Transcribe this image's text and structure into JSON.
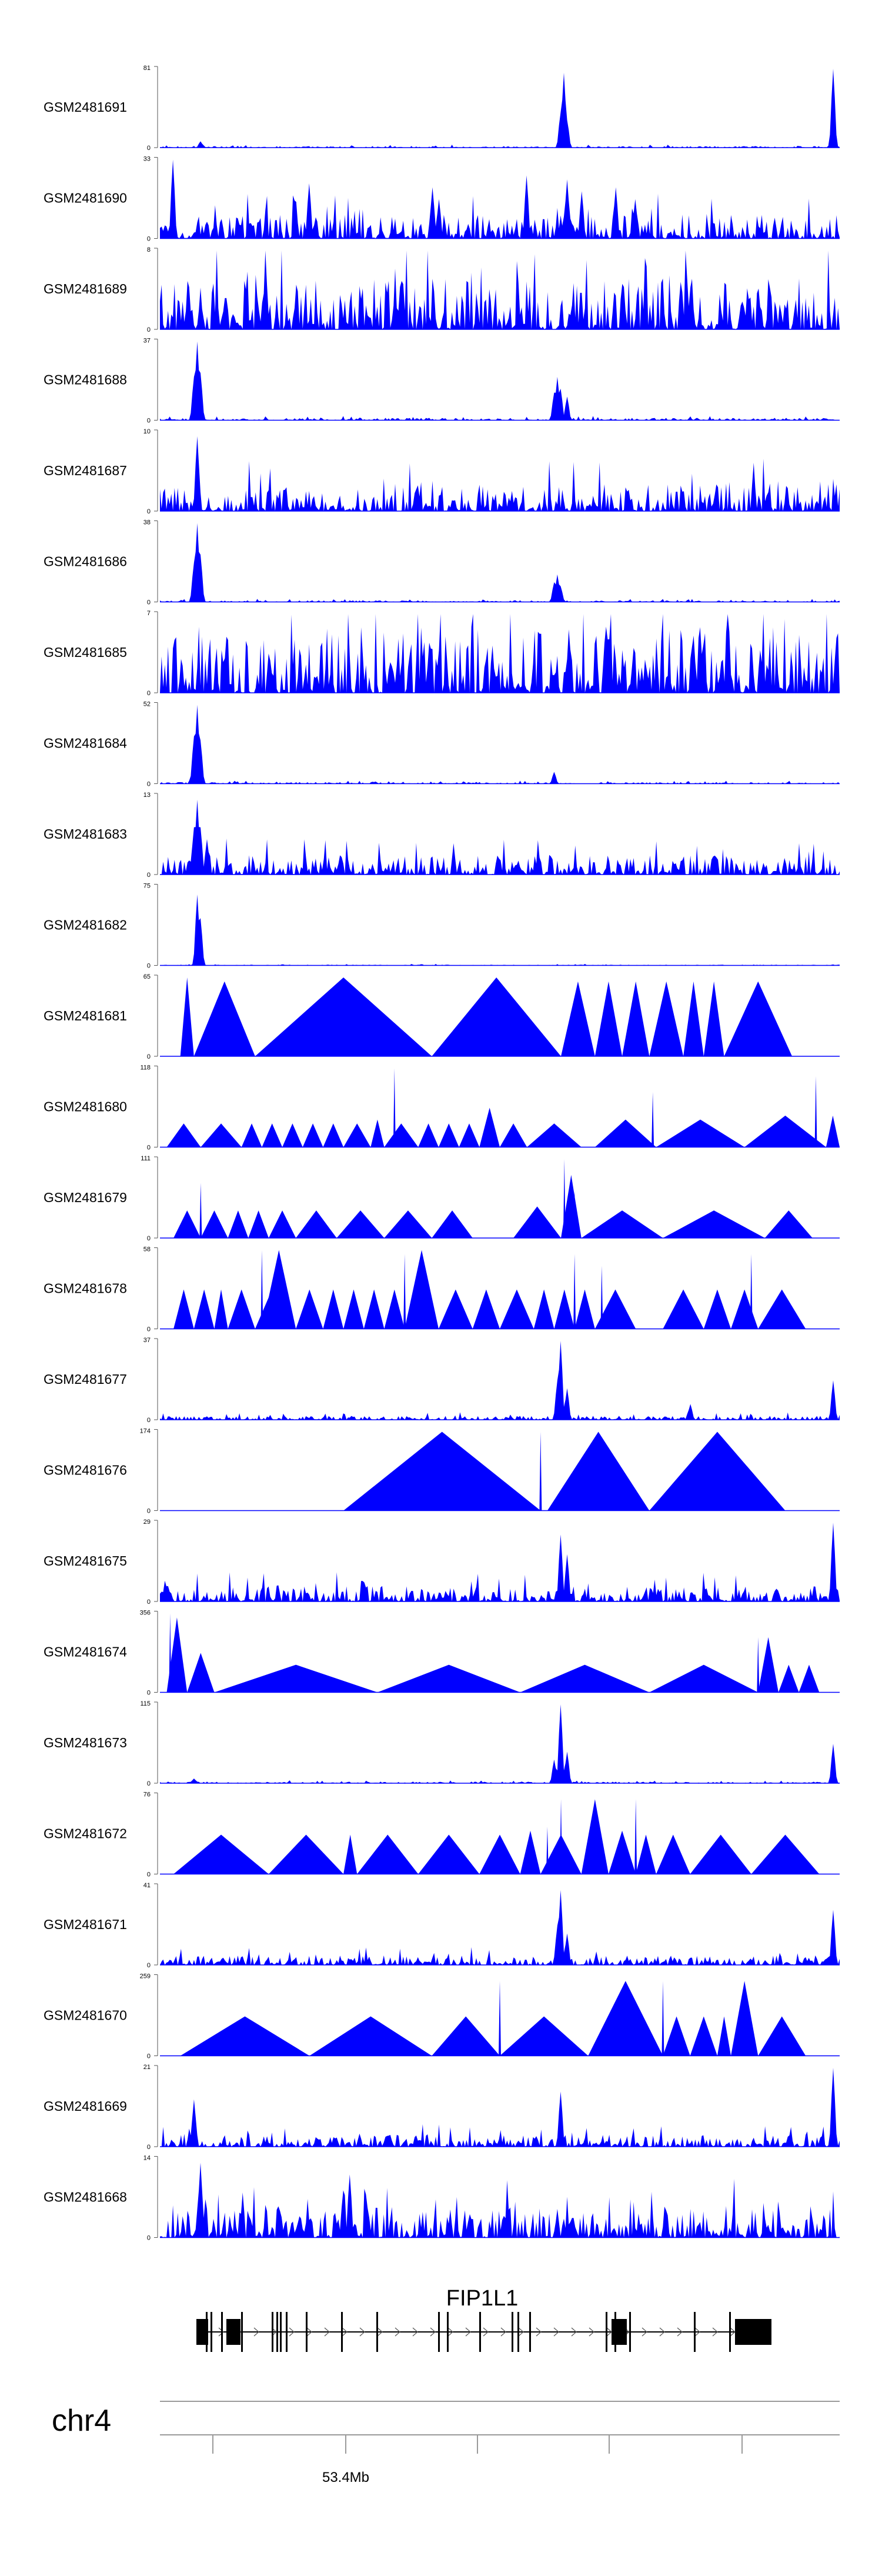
{
  "chart_data": {
    "type": "area",
    "color": "#0000ff",
    "chromosome": "chr4",
    "axis": {
      "tick_labels": [
        "53.4Mb"
      ]
    },
    "gene": {
      "name": "FIP1L1"
    },
    "tracks": [
      {
        "name": "GSM2481691",
        "max": 81,
        "pattern": "peaks",
        "peaks": [
          [
            0.06,
            0.08
          ],
          [
            0.59,
            0.45
          ],
          [
            0.595,
            0.95
          ],
          [
            0.6,
            0.35
          ],
          [
            0.99,
            1.0
          ]
        ],
        "noise": 0.02
      },
      {
        "name": "GSM2481690",
        "max": 33,
        "pattern": "mixed",
        "peaks": [
          [
            0.02,
            1.0
          ],
          [
            0.22,
            0.7
          ],
          [
            0.4,
            0.65
          ],
          [
            0.41,
            0.5
          ],
          [
            0.54,
            0.8
          ],
          [
            0.6,
            0.75
          ],
          [
            0.62,
            0.6
          ],
          [
            0.67,
            0.65
          ],
          [
            0.7,
            0.5
          ]
        ],
        "noise": 0.3
      },
      {
        "name": "GSM2481689",
        "max": 8,
        "pattern": "dense",
        "noise": 0.65
      },
      {
        "name": "GSM2481688",
        "max": 37,
        "pattern": "peaks",
        "peaks": [
          [
            0.05,
            0.55
          ],
          [
            0.055,
            1.0
          ],
          [
            0.06,
            0.6
          ],
          [
            0.58,
            0.35
          ],
          [
            0.585,
            0.55
          ],
          [
            0.59,
            0.4
          ],
          [
            0.6,
            0.3
          ]
        ],
        "noise": 0.03
      },
      {
        "name": "GSM2481687",
        "max": 10,
        "pattern": "dense",
        "noise": 0.35,
        "peaks": [
          [
            0.055,
            0.95
          ]
        ]
      },
      {
        "name": "GSM2481686",
        "max": 38,
        "pattern": "peaks",
        "peaks": [
          [
            0.05,
            0.5
          ],
          [
            0.055,
            1.0
          ],
          [
            0.06,
            0.6
          ],
          [
            0.58,
            0.25
          ],
          [
            0.585,
            0.35
          ],
          [
            0.59,
            0.2
          ]
        ],
        "noise": 0.02
      },
      {
        "name": "GSM2481685",
        "max": 7,
        "pattern": "dense",
        "noise": 0.85
      },
      {
        "name": "GSM2481684",
        "max": 52,
        "pattern": "peaks",
        "peaks": [
          [
            0.05,
            0.6
          ],
          [
            0.055,
            1.0
          ],
          [
            0.06,
            0.55
          ],
          [
            0.58,
            0.15
          ]
        ],
        "noise": 0.02
      },
      {
        "name": "GSM2481683",
        "max": 13,
        "pattern": "dense",
        "noise": 0.25,
        "peaks": [
          [
            0.05,
            0.6
          ],
          [
            0.055,
            0.95
          ],
          [
            0.06,
            0.6
          ],
          [
            0.07,
            0.45
          ]
        ]
      },
      {
        "name": "GSM2481682",
        "max": 75,
        "pattern": "peaks",
        "peaks": [
          [
            0.055,
            0.9
          ],
          [
            0.06,
            0.6
          ]
        ],
        "noise": 0.01
      },
      {
        "name": "GSM2481681",
        "max": 65,
        "pattern": "triangles",
        "tri": [
          [
            0.03,
            0.05,
            1.0
          ],
          [
            0.05,
            0.14,
            0.95
          ],
          [
            0.14,
            0.4,
            1.0
          ],
          [
            0.4,
            0.59,
            1.0
          ],
          [
            0.59,
            0.64,
            0.95
          ],
          [
            0.64,
            0.68,
            0.95
          ],
          [
            0.68,
            0.72,
            0.95
          ],
          [
            0.72,
            0.77,
            0.95
          ],
          [
            0.77,
            0.8,
            0.95
          ],
          [
            0.8,
            0.83,
            0.95
          ],
          [
            0.83,
            0.93,
            0.95
          ]
        ]
      },
      {
        "name": "GSM2481680",
        "max": 118,
        "pattern": "triangles",
        "tri": [
          [
            0.01,
            0.06,
            0.3
          ],
          [
            0.06,
            0.12,
            0.3
          ],
          [
            0.12,
            0.15,
            0.3
          ],
          [
            0.15,
            0.18,
            0.3
          ],
          [
            0.18,
            0.21,
            0.3
          ],
          [
            0.21,
            0.24,
            0.3
          ],
          [
            0.24,
            0.27,
            0.3
          ],
          [
            0.27,
            0.31,
            0.3
          ],
          [
            0.31,
            0.33,
            0.35
          ],
          [
            0.33,
            0.38,
            0.3
          ],
          [
            0.38,
            0.41,
            0.3
          ],
          [
            0.41,
            0.44,
            0.3
          ],
          [
            0.44,
            0.47,
            0.3
          ],
          [
            0.47,
            0.5,
            0.5
          ],
          [
            0.5,
            0.54,
            0.3
          ],
          [
            0.54,
            0.62,
            0.3
          ],
          [
            0.64,
            0.73,
            0.35
          ],
          [
            0.73,
            0.86,
            0.35
          ],
          [
            0.86,
            0.98,
            0.4
          ],
          [
            0.98,
            1.0,
            0.4
          ]
        ],
        "spikes": [
          [
            0.345,
            1.0
          ],
          [
            0.725,
            0.7
          ],
          [
            0.965,
            0.9
          ]
        ]
      },
      {
        "name": "GSM2481679",
        "max": 111,
        "pattern": "triangles",
        "tri": [
          [
            0.02,
            0.06,
            0.35
          ],
          [
            0.06,
            0.1,
            0.35
          ],
          [
            0.1,
            0.13,
            0.35
          ],
          [
            0.13,
            0.16,
            0.35
          ],
          [
            0.16,
            0.2,
            0.35
          ],
          [
            0.2,
            0.26,
            0.35
          ],
          [
            0.26,
            0.33,
            0.35
          ],
          [
            0.33,
            0.4,
            0.35
          ],
          [
            0.4,
            0.46,
            0.35
          ],
          [
            0.52,
            0.59,
            0.4
          ],
          [
            0.59,
            0.62,
            0.8
          ],
          [
            0.62,
            0.74,
            0.35
          ],
          [
            0.74,
            0.89,
            0.35
          ],
          [
            0.89,
            0.96,
            0.35
          ]
        ],
        "spikes": [
          [
            0.06,
            0.7
          ],
          [
            0.595,
            1.0
          ],
          [
            0.61,
            0.6
          ]
        ]
      },
      {
        "name": "GSM2481678",
        "max": 58,
        "pattern": "triangles",
        "tri": [
          [
            0.02,
            0.05,
            0.5
          ],
          [
            0.05,
            0.08,
            0.5
          ],
          [
            0.08,
            0.1,
            0.5
          ],
          [
            0.1,
            0.14,
            0.5
          ],
          [
            0.14,
            0.19,
            0.5
          ],
          [
            0.15,
            0.2,
            1.0
          ],
          [
            0.2,
            0.24,
            0.5
          ],
          [
            0.24,
            0.27,
            0.5
          ],
          [
            0.27,
            0.3,
            0.5
          ],
          [
            0.3,
            0.33,
            0.5
          ],
          [
            0.33,
            0.36,
            0.5
          ],
          [
            0.36,
            0.41,
            1.0
          ],
          [
            0.41,
            0.46,
            0.5
          ],
          [
            0.46,
            0.5,
            0.5
          ],
          [
            0.5,
            0.55,
            0.5
          ],
          [
            0.55,
            0.58,
            0.5
          ],
          [
            0.58,
            0.61,
            0.5
          ],
          [
            0.61,
            0.64,
            0.5
          ],
          [
            0.64,
            0.7,
            0.5
          ],
          [
            0.74,
            0.8,
            0.5
          ],
          [
            0.8,
            0.84,
            0.5
          ],
          [
            0.84,
            0.88,
            0.5
          ],
          [
            0.88,
            0.95,
            0.5
          ]
        ],
        "spikes": [
          [
            0.15,
            1.0
          ],
          [
            0.36,
            0.95
          ],
          [
            0.61,
            0.95
          ],
          [
            0.65,
            0.8
          ],
          [
            0.87,
            0.95
          ]
        ]
      },
      {
        "name": "GSM2481677",
        "max": 37,
        "pattern": "peaks",
        "peaks": [
          [
            0.585,
            0.5
          ],
          [
            0.59,
            1.0
          ],
          [
            0.6,
            0.4
          ],
          [
            0.78,
            0.2
          ],
          [
            0.99,
            0.5
          ]
        ],
        "noise": 0.05
      },
      {
        "name": "GSM2481676",
        "max": 174,
        "pattern": "triangles",
        "tri": [
          [
            0.27,
            0.56,
            1.0
          ],
          [
            0.57,
            0.72,
            1.0
          ],
          [
            0.72,
            0.92,
            1.0
          ]
        ],
        "spikes": [
          [
            0.56,
            1.0
          ]
        ]
      },
      {
        "name": "GSM2481675",
        "max": 29,
        "pattern": "dense",
        "noise": 0.2,
        "peaks": [
          [
            0.59,
            0.85
          ],
          [
            0.6,
            0.6
          ],
          [
            0.99,
            1.0
          ]
        ]
      },
      {
        "name": "GSM2481674",
        "max": 356,
        "pattern": "triangles",
        "tri": [
          [
            0.01,
            0.04,
            0.95
          ],
          [
            0.04,
            0.08,
            0.5
          ],
          [
            0.08,
            0.32,
            0.35
          ],
          [
            0.32,
            0.53,
            0.35
          ],
          [
            0.53,
            0.72,
            0.35
          ],
          [
            0.72,
            0.88,
            0.35
          ],
          [
            0.88,
            0.91,
            0.7
          ],
          [
            0.91,
            0.94,
            0.35
          ],
          [
            0.94,
            0.97,
            0.35
          ]
        ],
        "spikes": [
          [
            0.015,
            1.0
          ],
          [
            0.88,
            0.7
          ]
        ]
      },
      {
        "name": "GSM2481673",
        "max": 115,
        "pattern": "peaks",
        "peaks": [
          [
            0.05,
            0.06
          ],
          [
            0.58,
            0.3
          ],
          [
            0.59,
            1.0
          ],
          [
            0.6,
            0.4
          ],
          [
            0.99,
            0.5
          ]
        ],
        "noise": 0.02
      },
      {
        "name": "GSM2481672",
        "max": 76,
        "pattern": "triangles",
        "tri": [
          [
            0.02,
            0.16,
            0.5
          ],
          [
            0.16,
            0.27,
            0.5
          ],
          [
            0.27,
            0.29,
            0.5
          ],
          [
            0.29,
            0.38,
            0.5
          ],
          [
            0.38,
            0.47,
            0.5
          ],
          [
            0.47,
            0.53,
            0.5
          ],
          [
            0.53,
            0.56,
            0.55
          ],
          [
            0.56,
            0.62,
            0.5
          ],
          [
            0.62,
            0.66,
            0.95
          ],
          [
            0.66,
            0.7,
            0.55
          ],
          [
            0.7,
            0.73,
            0.5
          ],
          [
            0.73,
            0.78,
            0.5
          ],
          [
            0.78,
            0.87,
            0.5
          ],
          [
            0.87,
            0.97,
            0.5
          ]
        ],
        "spikes": [
          [
            0.57,
            0.6
          ],
          [
            0.59,
            0.95
          ],
          [
            0.7,
            0.95
          ]
        ]
      },
      {
        "name": "GSM2481671",
        "max": 41,
        "pattern": "dense",
        "noise": 0.12,
        "peaks": [
          [
            0.585,
            0.5
          ],
          [
            0.59,
            0.95
          ],
          [
            0.6,
            0.4
          ],
          [
            0.99,
            0.7
          ]
        ]
      },
      {
        "name": "GSM2481670",
        "max": 259,
        "pattern": "triangles",
        "tri": [
          [
            0.03,
            0.22,
            0.5
          ],
          [
            0.22,
            0.4,
            0.5
          ],
          [
            0.4,
            0.5,
            0.5
          ],
          [
            0.5,
            0.63,
            0.5
          ],
          [
            0.63,
            0.74,
            0.95
          ],
          [
            0.74,
            0.78,
            0.5
          ],
          [
            0.78,
            0.82,
            0.5
          ],
          [
            0.82,
            0.84,
            0.5
          ],
          [
            0.84,
            0.88,
            0.95
          ],
          [
            0.88,
            0.95,
            0.5
          ]
        ],
        "spikes": [
          [
            0.5,
            0.95
          ],
          [
            0.74,
            0.95
          ]
        ]
      },
      {
        "name": "GSM2481669",
        "max": 21,
        "pattern": "dense",
        "noise": 0.15,
        "peaks": [
          [
            0.05,
            0.6
          ],
          [
            0.59,
            0.7
          ],
          [
            0.99,
            1.0
          ]
        ]
      },
      {
        "name": "GSM2481668",
        "max": 14,
        "pattern": "dense",
        "noise": 0.4,
        "peaks": [
          [
            0.06,
            0.95
          ],
          [
            0.27,
            0.6
          ],
          [
            0.28,
            0.8
          ]
        ]
      }
    ]
  }
}
